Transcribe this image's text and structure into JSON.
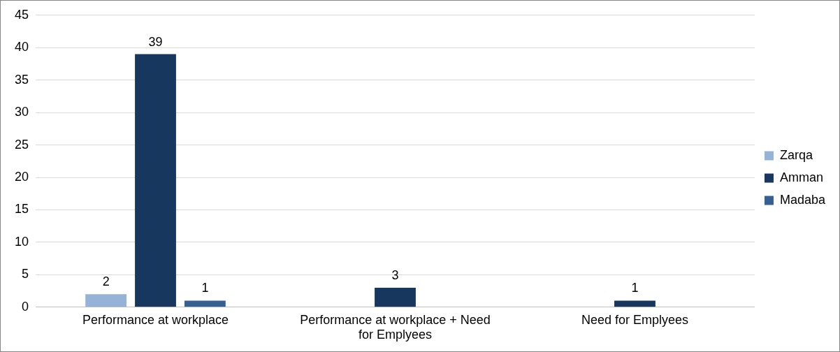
{
  "chart_data": {
    "type": "bar",
    "categories": [
      "Performance at workplace",
      "Performance at workplace + Need for Emplyees",
      "Need for Emplyees"
    ],
    "series": [
      {
        "name": "Zarqa",
        "color": "#95b3d7",
        "values": [
          2,
          null,
          null
        ]
      },
      {
        "name": "Amman",
        "color": "#17375e",
        "values": [
          39,
          3,
          1
        ]
      },
      {
        "name": "Madaba",
        "color": "#376092",
        "values": [
          1,
          null,
          null
        ]
      }
    ],
    "ylim": [
      0,
      45
    ],
    "yticks": [
      0,
      5,
      10,
      15,
      20,
      25,
      30,
      35,
      40,
      45
    ],
    "grid": "y",
    "legend": "right",
    "data_labels": true
  }
}
